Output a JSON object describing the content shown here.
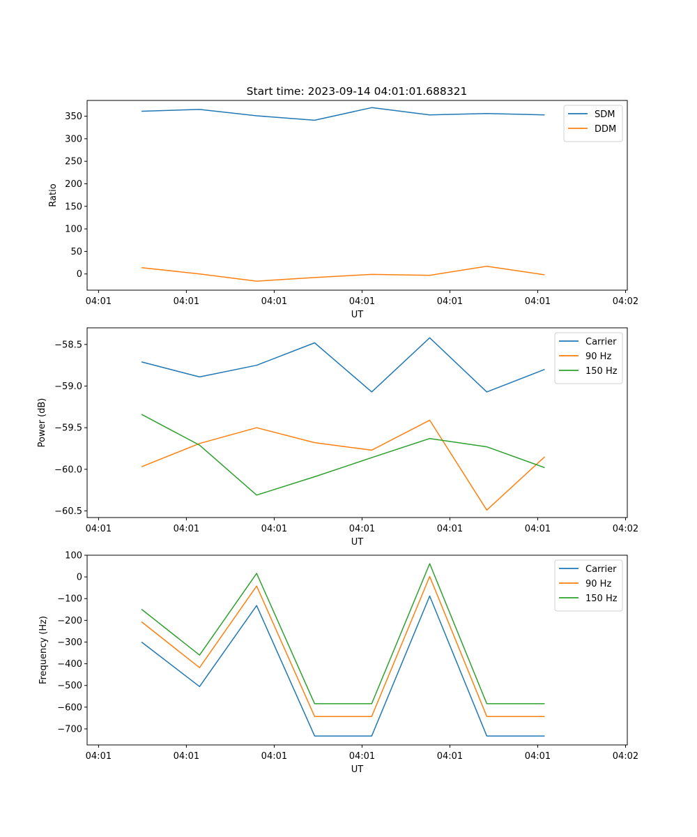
{
  "figure": {
    "title": "Start time: 2023-09-14 04:01:01.688321"
  },
  "chart_data": [
    {
      "type": "line",
      "title": "Start time: 2023-09-14 04:01:01.688321",
      "xlabel": "UT",
      "ylabel": "Ratio",
      "x_unit": "seconds after 04:01:00",
      "x": [
        4.9,
        11.5,
        18.0,
        24.6,
        31.1,
        37.7,
        44.2,
        50.8
      ],
      "xlim": [
        -1.3,
        60.2
      ],
      "xticks": [
        0,
        10,
        20,
        30,
        40,
        50,
        60
      ],
      "xtick_labels": [
        "04:01",
        "04:01",
        "04:01",
        "04:01",
        "04:01",
        "04:01",
        "04:02"
      ],
      "ylim": [
        -36,
        385
      ],
      "yticks": [
        0,
        50,
        100,
        150,
        200,
        250,
        300,
        350
      ],
      "ytick_labels": [
        "0",
        "50",
        "100",
        "150",
        "200",
        "250",
        "300",
        "350"
      ],
      "legend": "top-right",
      "grid": false,
      "series": [
        {
          "name": "SDM",
          "color": "#1f77b4",
          "values": [
            361,
            365,
            351,
            341,
            369,
            353,
            356,
            353
          ]
        },
        {
          "name": "DDM",
          "color": "#ff7f0e",
          "values": [
            14,
            0,
            -16,
            -8,
            -1,
            -3,
            17,
            -2
          ]
        }
      ]
    },
    {
      "type": "line",
      "title": "",
      "xlabel": "UT",
      "ylabel": "Power (dB)",
      "x_unit": "seconds after 04:01:00",
      "x": [
        4.9,
        11.5,
        18.0,
        24.6,
        31.1,
        37.7,
        44.2,
        50.8
      ],
      "xlim": [
        -1.3,
        60.2
      ],
      "xticks": [
        0,
        10,
        20,
        30,
        40,
        50,
        60
      ],
      "xtick_labels": [
        "04:01",
        "04:01",
        "04:01",
        "04:01",
        "04:01",
        "04:01",
        "04:02"
      ],
      "ylim": [
        -60.58,
        -58.3
      ],
      "yticks": [
        -58.5,
        -59.0,
        -59.5,
        -60.0,
        -60.5
      ],
      "ytick_labels": [
        "−58.5",
        "−59.0",
        "−59.5",
        "−60.0",
        "−60.5"
      ],
      "legend": "top-right",
      "grid": false,
      "series": [
        {
          "name": "Carrier",
          "color": "#1f77b4",
          "values": [
            -58.71,
            -58.89,
            -58.75,
            -58.48,
            -59.07,
            -58.42,
            -59.07,
            -58.8
          ]
        },
        {
          "name": "90 Hz",
          "color": "#ff7f0e",
          "values": [
            -59.97,
            -59.69,
            -59.5,
            -59.68,
            -59.77,
            -59.41,
            -60.49,
            -59.85
          ]
        },
        {
          "name": "150 Hz",
          "color": "#2ca02c",
          "values": [
            -59.34,
            -59.71,
            -60.31,
            -60.09,
            -59.86,
            -59.63,
            -59.73,
            -59.98
          ]
        }
      ]
    },
    {
      "type": "line",
      "title": "",
      "xlabel": "UT",
      "ylabel": "Frequency (Hz)",
      "x_unit": "seconds after 04:01:00",
      "x": [
        4.9,
        11.5,
        18.0,
        24.6,
        31.1,
        37.7,
        44.2,
        50.8
      ],
      "xlim": [
        -1.3,
        60.2
      ],
      "xticks": [
        0,
        10,
        20,
        30,
        40,
        50,
        60
      ],
      "xtick_labels": [
        "04:01",
        "04:01",
        "04:01",
        "04:01",
        "04:01",
        "04:01",
        "04:02"
      ],
      "ylim": [
        -774,
        100
      ],
      "yticks": [
        100,
        0,
        -100,
        -200,
        -300,
        -400,
        -500,
        -600,
        -700
      ],
      "ytick_labels": [
        "100",
        "0",
        "−100",
        "−200",
        "−300",
        "−400",
        "−500",
        "−600",
        "−700"
      ],
      "legend": "top-right",
      "grid": false,
      "series": [
        {
          "name": "Carrier",
          "color": "#1f77b4",
          "values": [
            -300,
            -505,
            -132,
            -733,
            -733,
            -88,
            -733,
            -733
          ]
        },
        {
          "name": "90 Hz",
          "color": "#ff7f0e",
          "values": [
            -207,
            -418,
            -42,
            -643,
            -643,
            2,
            -643,
            -643
          ]
        },
        {
          "name": "150 Hz",
          "color": "#2ca02c",
          "values": [
            -149,
            -360,
            16,
            -584,
            -584,
            61,
            -584,
            -584
          ]
        }
      ]
    }
  ]
}
